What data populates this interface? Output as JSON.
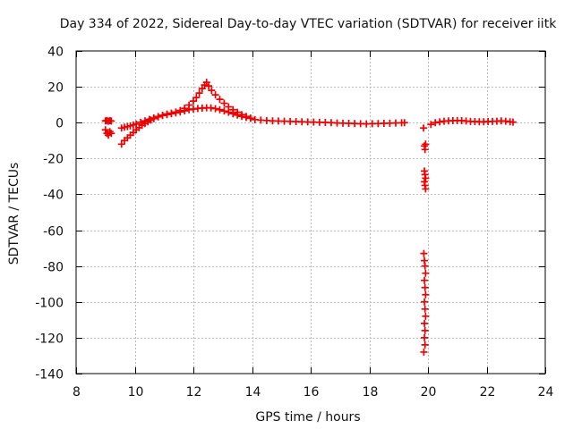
{
  "chart_data": {
    "type": "scatter",
    "title": "Day 334 of 2022, Sidereal Day-to-day VTEC variation (SDTVAR) for receiver iitk",
    "xlabel": "GPS time / hours",
    "ylabel": "SDTVAR / TECUs",
    "xlim": [
      8,
      24
    ],
    "ylim": [
      -140,
      40
    ],
    "x_ticks": [
      8,
      10,
      12,
      14,
      16,
      18,
      20,
      22,
      24
    ],
    "x_tick_labels": [
      "8",
      "10",
      "12",
      "14",
      "16",
      "18",
      "20",
      "22",
      "24"
    ],
    "y_ticks": [
      -140,
      -120,
      -100,
      -80,
      -60,
      -40,
      -20,
      0,
      20,
      40
    ],
    "y_tick_labels": [
      "-140",
      "-120",
      "-100",
      "-80",
      "-60",
      "-40",
      "-20",
      "0",
      "20",
      "40"
    ],
    "grid": true,
    "marker": "plus",
    "color": "#ee0000",
    "series": [
      {
        "name": "SDTVAR",
        "points": [
          [
            9.0,
            1.0
          ],
          [
            9.05,
            1.2
          ],
          [
            9.1,
            0.8
          ],
          [
            9.15,
            1.1
          ],
          [
            9.2,
            0.9
          ],
          [
            9.0,
            -4.0
          ],
          [
            9.05,
            -6.0
          ],
          [
            9.1,
            -7.0
          ],
          [
            9.15,
            -5.0
          ],
          [
            9.2,
            -6.0
          ],
          [
            9.55,
            -12.0
          ],
          [
            9.65,
            -10.0
          ],
          [
            9.75,
            -8.5
          ],
          [
            9.85,
            -7.0
          ],
          [
            9.95,
            -5.5
          ],
          [
            10.05,
            -4.0
          ],
          [
            10.15,
            -2.8
          ],
          [
            10.25,
            -1.5
          ],
          [
            10.35,
            -0.5
          ],
          [
            10.45,
            0.5
          ],
          [
            10.55,
            1.4
          ],
          [
            10.65,
            2.2
          ],
          [
            10.8,
            3.2
          ],
          [
            10.95,
            4.0
          ],
          [
            11.1,
            4.5
          ],
          [
            11.25,
            5.0
          ],
          [
            11.4,
            5.5
          ],
          [
            11.55,
            6.0
          ],
          [
            11.7,
            6.6
          ],
          [
            11.85,
            7.2
          ],
          [
            12.0,
            7.6
          ],
          [
            12.15,
            7.9
          ],
          [
            12.3,
            8.1
          ],
          [
            12.45,
            8.3
          ],
          [
            12.6,
            8.2
          ],
          [
            12.75,
            7.8
          ],
          [
            12.9,
            7.2
          ],
          [
            13.05,
            6.5
          ],
          [
            13.2,
            5.8
          ],
          [
            13.35,
            5.0
          ],
          [
            13.5,
            4.2
          ],
          [
            13.65,
            3.5
          ],
          [
            13.8,
            2.9
          ],
          [
            13.95,
            2.4
          ],
          [
            9.55,
            -3.0
          ],
          [
            9.65,
            -2.6
          ],
          [
            9.75,
            -2.2
          ],
          [
            9.85,
            -1.8
          ],
          [
            9.95,
            -1.3
          ],
          [
            10.05,
            -0.8
          ],
          [
            10.2,
            0.2
          ],
          [
            10.35,
            1.0
          ],
          [
            10.5,
            1.8
          ],
          [
            10.65,
            2.6
          ],
          [
            10.8,
            3.4
          ],
          [
            10.95,
            4.1
          ],
          [
            11.1,
            4.8
          ],
          [
            11.25,
            5.3
          ],
          [
            11.4,
            5.9
          ],
          [
            11.55,
            6.8
          ],
          [
            11.7,
            8.0
          ],
          [
            11.85,
            9.8
          ],
          [
            12.0,
            12.0
          ],
          [
            12.1,
            14.0
          ],
          [
            12.2,
            16.5
          ],
          [
            12.3,
            19.0
          ],
          [
            12.38,
            21.0
          ],
          [
            12.45,
            22.5
          ],
          [
            12.52,
            20.5
          ],
          [
            12.62,
            18.0
          ],
          [
            12.75,
            15.5
          ],
          [
            12.9,
            13.0
          ],
          [
            13.05,
            10.8
          ],
          [
            13.2,
            8.8
          ],
          [
            13.35,
            7.2
          ],
          [
            13.5,
            5.8
          ],
          [
            13.65,
            4.5
          ],
          [
            13.8,
            3.5
          ],
          [
            13.95,
            2.5
          ],
          [
            14.1,
            1.7
          ],
          [
            14.3,
            1.4
          ],
          [
            14.5,
            1.2
          ],
          [
            14.7,
            1.0
          ],
          [
            14.9,
            0.9
          ],
          [
            15.1,
            0.8
          ],
          [
            15.3,
            0.7
          ],
          [
            15.5,
            0.6
          ],
          [
            15.7,
            0.5
          ],
          [
            15.9,
            0.4
          ],
          [
            16.1,
            0.3
          ],
          [
            16.3,
            0.2
          ],
          [
            16.5,
            0.1
          ],
          [
            16.7,
            0.0
          ],
          [
            16.9,
            -0.2
          ],
          [
            17.1,
            -0.3
          ],
          [
            17.3,
            -0.4
          ],
          [
            17.5,
            -0.5
          ],
          [
            17.7,
            -0.6
          ],
          [
            17.9,
            -0.7
          ],
          [
            18.1,
            -0.6
          ],
          [
            18.3,
            -0.5
          ],
          [
            18.5,
            -0.4
          ],
          [
            18.7,
            -0.3
          ],
          [
            18.9,
            -0.2
          ],
          [
            19.1,
            -0.1
          ],
          [
            19.2,
            0.0
          ],
          [
            19.85,
            -3.0
          ],
          [
            19.88,
            -13.0
          ],
          [
            19.9,
            -15.0
          ],
          [
            19.92,
            -12.0
          ],
          [
            19.88,
            -27.0
          ],
          [
            19.9,
            -29.0
          ],
          [
            19.92,
            -31.0
          ],
          [
            19.88,
            -33.0
          ],
          [
            19.9,
            -35.0
          ],
          [
            19.92,
            -37.0
          ],
          [
            19.86,
            -73.0
          ],
          [
            19.88,
            -77.0
          ],
          [
            19.9,
            -80.0
          ],
          [
            19.92,
            -84.0
          ],
          [
            19.88,
            -88.0
          ],
          [
            19.9,
            -92.0
          ],
          [
            19.92,
            -96.0
          ],
          [
            19.88,
            -100.0
          ],
          [
            19.9,
            -104.0
          ],
          [
            19.92,
            -108.0
          ],
          [
            19.88,
            -112.0
          ],
          [
            19.9,
            -116.0
          ],
          [
            19.88,
            -120.0
          ],
          [
            19.9,
            -124.0
          ],
          [
            19.86,
            -128.0
          ],
          [
            20.1,
            -1.0
          ],
          [
            20.25,
            0.0
          ],
          [
            20.4,
            0.4
          ],
          [
            20.55,
            0.8
          ],
          [
            20.7,
            1.0
          ],
          [
            20.85,
            1.1
          ],
          [
            21.0,
            1.2
          ],
          [
            21.15,
            1.1
          ],
          [
            21.3,
            0.9
          ],
          [
            21.45,
            0.7
          ],
          [
            21.6,
            0.6
          ],
          [
            21.75,
            0.5
          ],
          [
            21.9,
            0.5
          ],
          [
            22.05,
            0.6
          ],
          [
            22.2,
            0.7
          ],
          [
            22.35,
            0.8
          ],
          [
            22.5,
            1.0
          ],
          [
            22.65,
            0.8
          ],
          [
            22.8,
            0.5
          ],
          [
            22.9,
            0.3
          ]
        ]
      }
    ]
  }
}
